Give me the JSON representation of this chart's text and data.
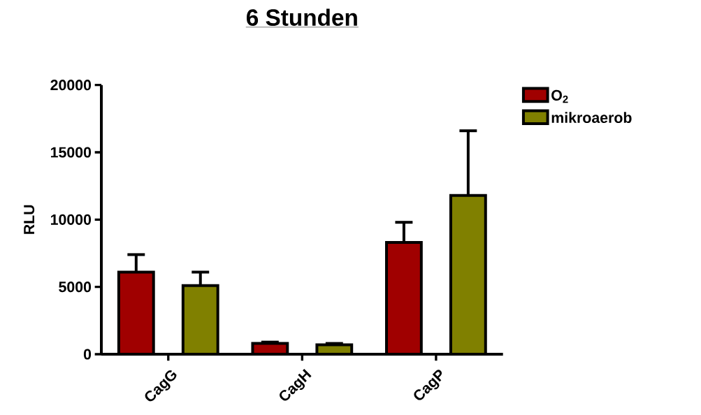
{
  "chart_data": {
    "type": "bar",
    "title": "6 Stunden",
    "ylabel": "RLU",
    "categories": [
      "CagG",
      "CagH",
      "CagP"
    ],
    "series": [
      {
        "name": "O$_{2}$",
        "color": "#a00000",
        "values": [
          6100,
          800,
          8300
        ],
        "errors": [
          [
            6100,
            7400
          ],
          [
            800,
            900
          ],
          [
            8300,
            9800
          ]
        ]
      },
      {
        "name": "mikroaerob",
        "color": "#808000",
        "values": [
          5100,
          700,
          11800
        ],
        "errors": [
          [
            5100,
            6100
          ],
          [
            700,
            800
          ],
          [
            11800,
            16600
          ]
        ]
      }
    ],
    "ylim": [
      0,
      20000
    ],
    "yticks": [
      0,
      5000,
      10000,
      15000,
      20000
    ],
    "grid": false,
    "legend": "top right"
  }
}
